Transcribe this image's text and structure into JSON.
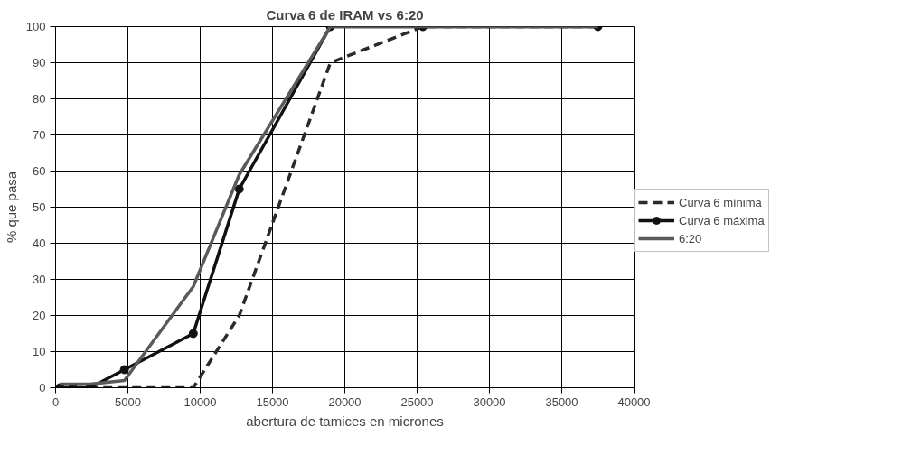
{
  "chart_data": {
    "type": "line",
    "title": "Curva 6 de IRAM vs 6:20",
    "xlabel": "abertura de tamices en micrones",
    "ylabel": "% que pasa",
    "xlim": [
      0,
      40000
    ],
    "xticks": [
      0,
      5000,
      10000,
      15000,
      20000,
      25000,
      30000,
      35000,
      40000
    ],
    "ylim": [
      0,
      100
    ],
    "yticks": [
      0,
      10,
      20,
      30,
      40,
      50,
      60,
      70,
      80,
      90,
      100
    ],
    "grid": true,
    "legend": "right",
    "series": [
      {
        "name": "Curva 6 mínima",
        "color": "#2a2a2a",
        "line_style": "dashed",
        "marker": "none",
        "x": [
          297,
          1190,
          2380,
          4760,
          9520,
          12700,
          19000,
          25400,
          37500
        ],
        "values": [
          0,
          0,
          0,
          0,
          0,
          20,
          90,
          100,
          100
        ]
      },
      {
        "name": "Curva 6 máxima",
        "color": "#111111",
        "line_style": "solid",
        "marker": "circle",
        "x": [
          297,
          1190,
          2380,
          4760,
          9520,
          12700,
          19000,
          25400,
          37500
        ],
        "values": [
          0,
          0,
          0,
          5,
          15,
          55,
          100,
          100,
          100
        ]
      },
      {
        "name": "6:20",
        "color": "#5a5a5a",
        "line_style": "solid",
        "marker": "none",
        "x": [
          297,
          1190,
          2380,
          4760,
          9520,
          12700,
          19000,
          25400,
          37500
        ],
        "values": [
          1,
          1,
          1,
          2,
          28,
          59,
          100,
          100,
          100
        ]
      }
    ]
  }
}
